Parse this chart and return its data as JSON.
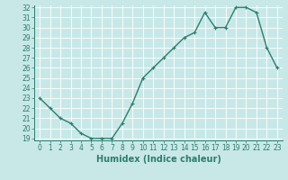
{
  "x": [
    0,
    1,
    2,
    3,
    4,
    5,
    6,
    7,
    8,
    9,
    10,
    11,
    12,
    13,
    14,
    15,
    16,
    17,
    18,
    19,
    20,
    21,
    22,
    23
  ],
  "y": [
    23,
    22,
    21,
    20.5,
    19.5,
    19,
    19,
    19,
    20.5,
    22.5,
    25,
    26,
    27,
    28,
    29,
    29.5,
    31.5,
    30,
    30,
    32,
    32,
    31.5,
    28,
    26
  ],
  "line_color": "#2e7d6e",
  "marker": "+",
  "marker_size": 3,
  "bg_color": "#c8e8e8",
  "grid_color": "#ffffff",
  "tick_color": "#2e7d6e",
  "xlabel": "Humidex (Indice chaleur)",
  "ylim": [
    19,
    32
  ],
  "xlim": [
    -0.5,
    23.5
  ],
  "yticks": [
    19,
    20,
    21,
    22,
    23,
    24,
    25,
    26,
    27,
    28,
    29,
    30,
    31,
    32
  ],
  "xticks": [
    0,
    1,
    2,
    3,
    4,
    5,
    6,
    7,
    8,
    9,
    10,
    11,
    12,
    13,
    14,
    15,
    16,
    17,
    18,
    19,
    20,
    21,
    22,
    23
  ],
  "label_fontsize": 6.5,
  "tick_fontsize": 5.5,
  "xlabel_fontsize": 7,
  "lw": 1.0,
  "markeredgewidth": 0.8
}
